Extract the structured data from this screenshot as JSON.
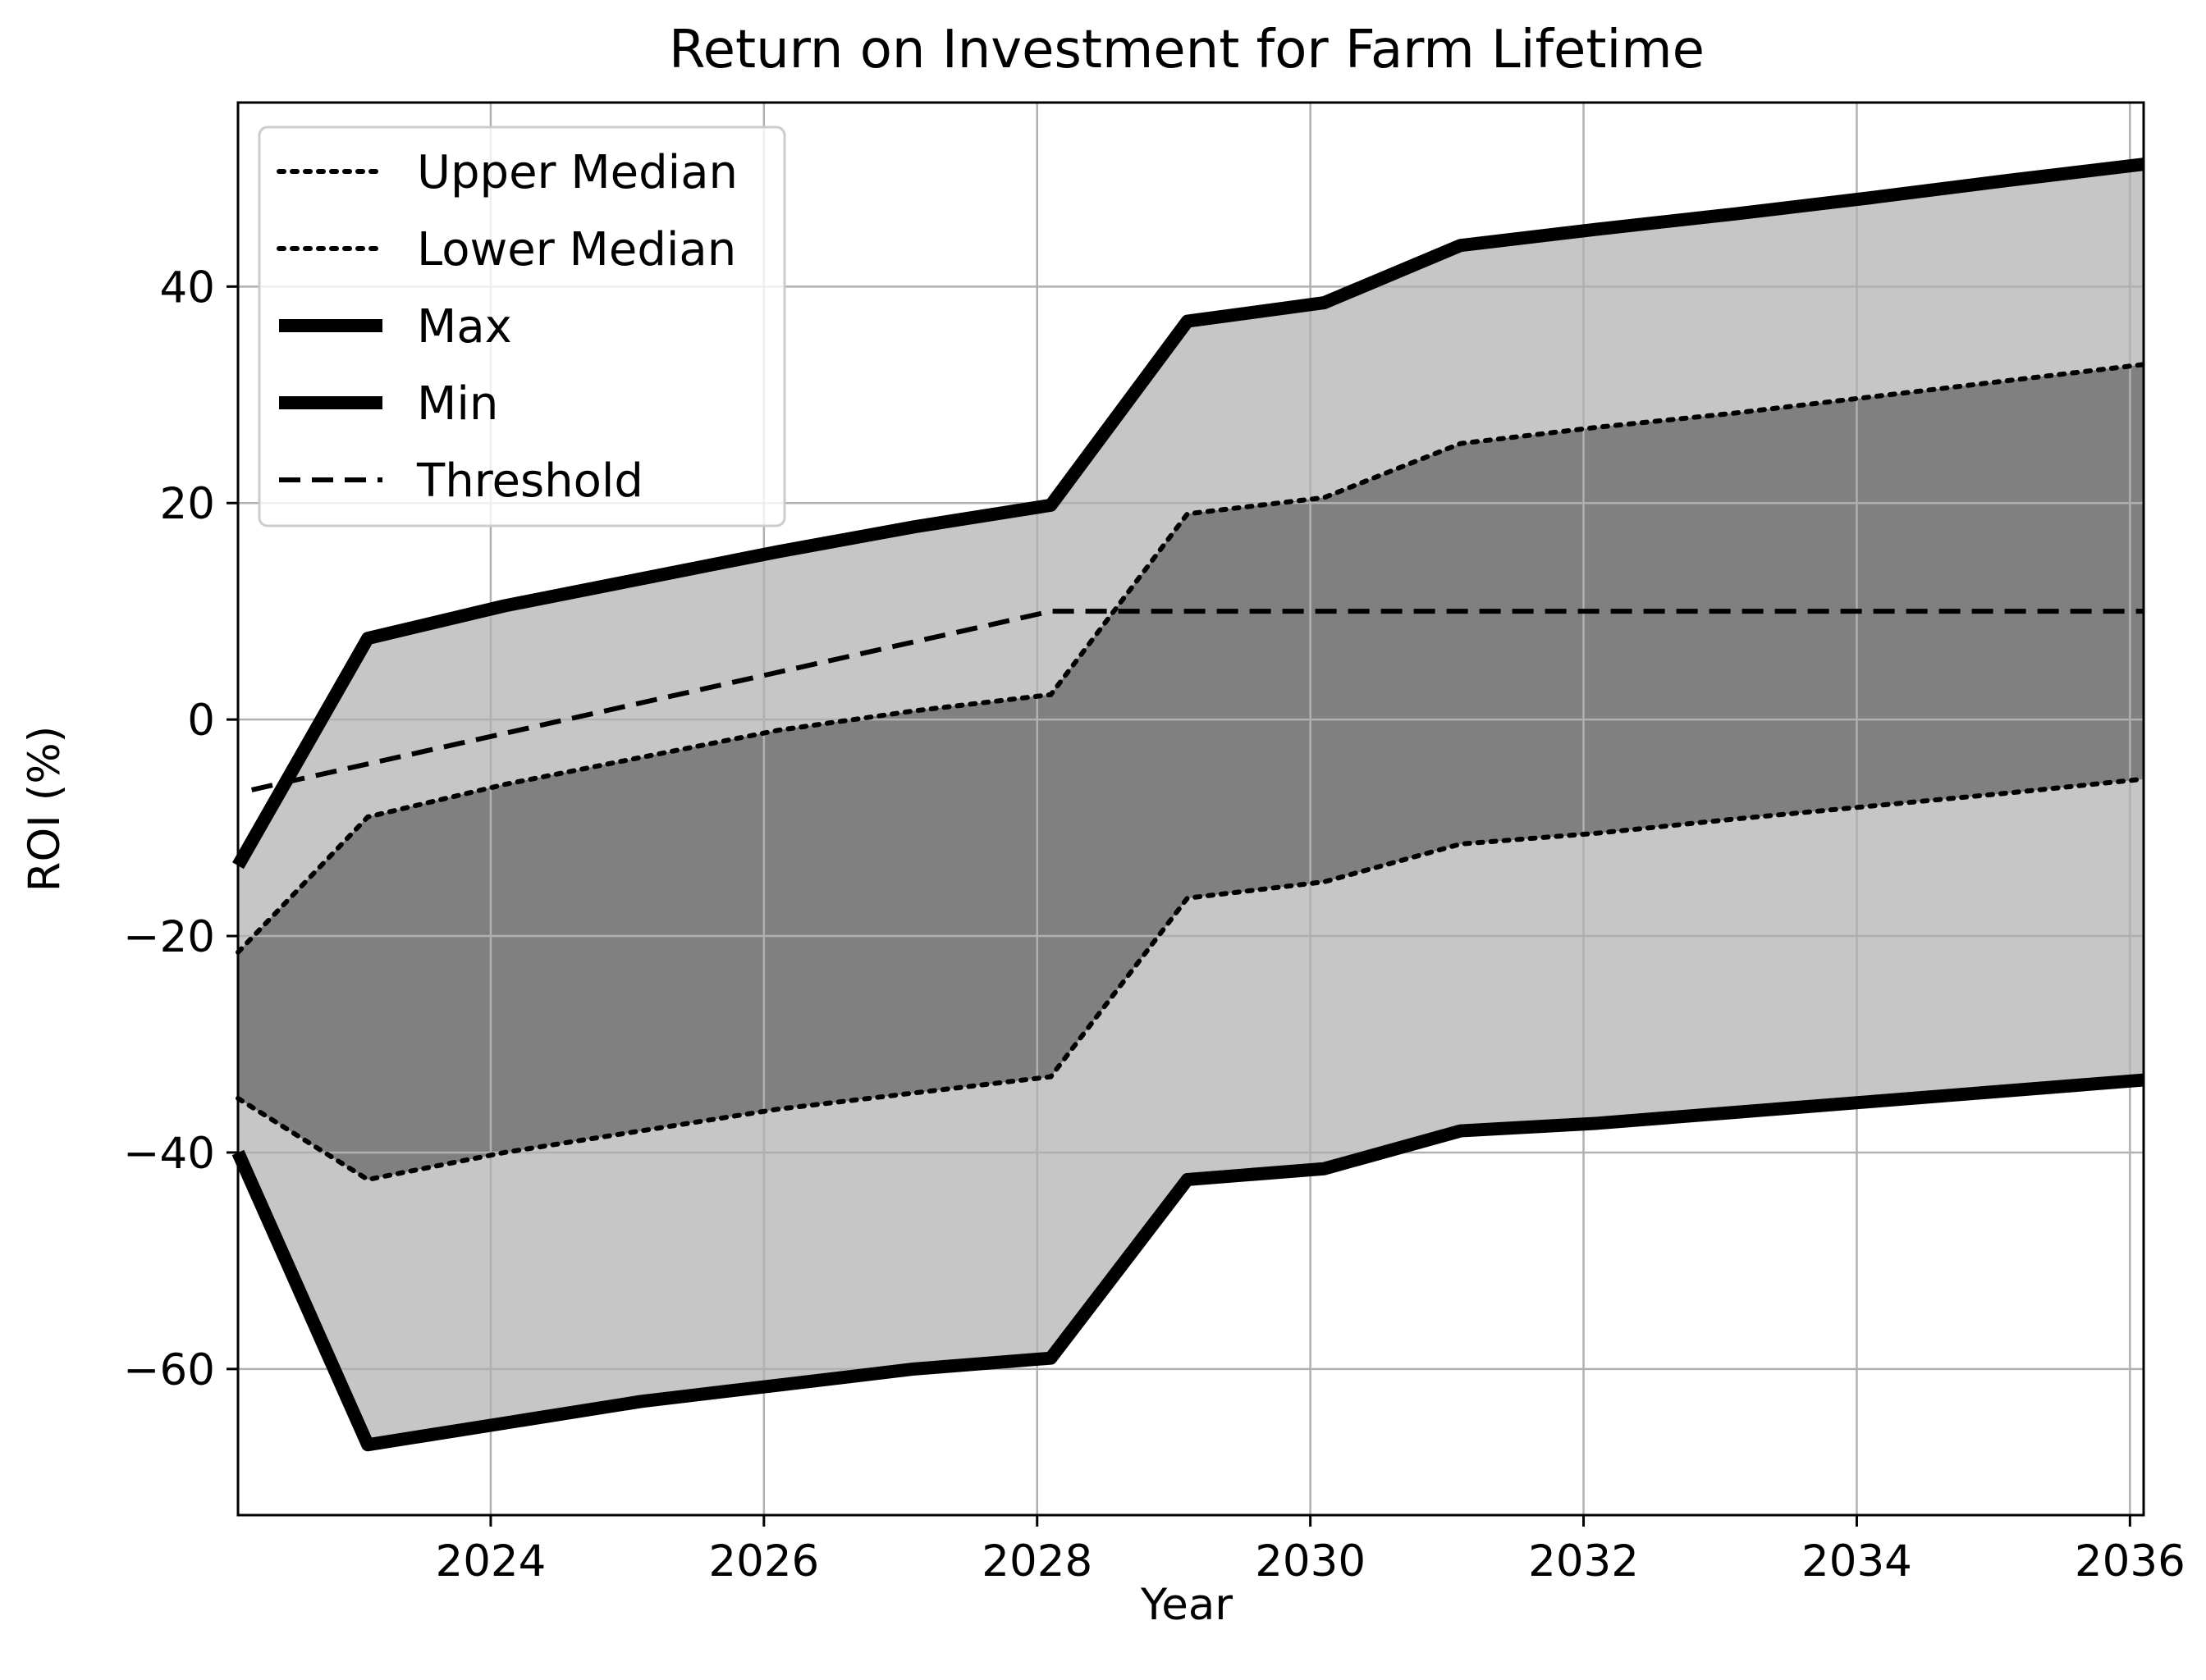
{
  "chart_data": {
    "type": "area",
    "title": "Return on Investment for Farm Lifetime",
    "xlabel": "Year",
    "ylabel": "ROI (%)",
    "xlim": [
      2022.15,
      2036.1
    ],
    "ylim": [
      -73.5,
      57
    ],
    "xticks": [
      2024,
      2026,
      2028,
      2030,
      2032,
      2034,
      2036
    ],
    "yticks": [
      -60,
      -40,
      -20,
      0,
      20,
      40
    ],
    "xtick_labels": [
      "2024",
      "2026",
      "2028",
      "2030",
      "2032",
      "2034",
      "2036"
    ],
    "ytick_labels": [
      "−60",
      "−40",
      "−20",
      "0",
      "20",
      "40"
    ],
    "grid": true,
    "legend_position": "top-left",
    "x": [
      2022.15,
      2023.1,
      2024.1,
      2025.1,
      2026.1,
      2027.1,
      2028.1,
      2029.1,
      2030.1,
      2031.1,
      2032.1,
      2033.1,
      2034.1,
      2035.1,
      2036.1
    ],
    "series": [
      {
        "name": "Max",
        "style": "solid-thick",
        "values": [
          -13.5,
          7.5,
          10.5,
          13.0,
          15.5,
          17.8,
          19.8,
          36.8,
          38.5,
          43.8,
          45.3,
          46.7,
          48.2,
          49.8,
          51.3
        ]
      },
      {
        "name": "Upper Median",
        "style": "dotted",
        "values": [
          -21.5,
          -9.0,
          -6.0,
          -3.5,
          -1.0,
          0.8,
          2.3,
          19.0,
          20.5,
          25.5,
          27.0,
          28.3,
          29.8,
          31.3,
          32.8
        ]
      },
      {
        "name": "Lower Median",
        "style": "dotted",
        "values": [
          -35.0,
          -42.5,
          -40.0,
          -38.0,
          -36.0,
          -34.5,
          -33.0,
          -16.5,
          -15.0,
          -11.5,
          -10.5,
          -9.2,
          -8.0,
          -6.8,
          -5.5
        ]
      },
      {
        "name": "Min",
        "style": "solid-thick",
        "values": [
          -40.0,
          -67.0,
          -65.0,
          -63.0,
          -61.5,
          -60.0,
          -59.0,
          -42.5,
          -41.5,
          -38.0,
          -37.3,
          -36.3,
          -35.3,
          -34.3,
          -33.3
        ]
      }
    ],
    "threshold": {
      "name": "Threshold",
      "style": "dashed",
      "x": [
        2022.25,
        2028.1,
        2036.1
      ],
      "values": [
        -6.5,
        10.0,
        10.0
      ]
    },
    "colors": {
      "outer_band": "#c6c6c6",
      "inner_band": "#808080",
      "lines": "#000000",
      "grid": "#b0b0b0"
    }
  }
}
